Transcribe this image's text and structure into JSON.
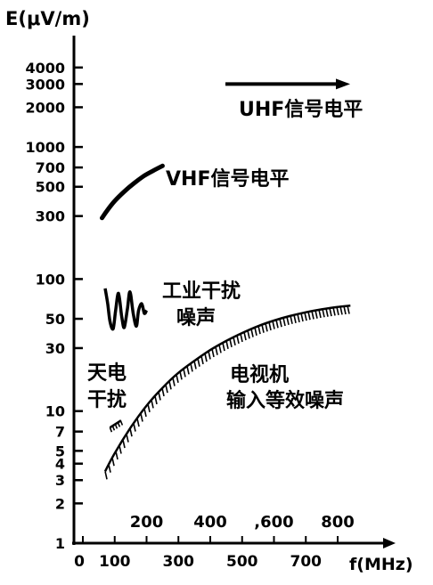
{
  "chart_data": {
    "type": "line",
    "y_scale": "log",
    "ylabel": "E(μV/m)",
    "xlabel": "f(MHz)",
    "ylim": [
      1,
      4000
    ],
    "xlim": [
      0,
      850
    ],
    "y_ticks": [
      {
        "value": 1,
        "label": "1"
      },
      {
        "value": 2,
        "label": "2"
      },
      {
        "value": 3,
        "label": "3"
      },
      {
        "value": 4,
        "label": "4"
      },
      {
        "value": 5,
        "label": "5"
      },
      {
        "value": 7,
        "label": "7"
      },
      {
        "value": 10,
        "label": "10"
      },
      {
        "value": 30,
        "label": "30"
      },
      {
        "value": 50,
        "label": "50"
      },
      {
        "value": 100,
        "label": "100"
      },
      {
        "value": 300,
        "label": "300"
      },
      {
        "value": 500,
        "label": "500"
      },
      {
        "value": 700,
        "label": "700"
      },
      {
        "value": 1000,
        "label": "1000"
      },
      {
        "value": 2000,
        "label": "2000"
      },
      {
        "value": 3000,
        "label": "3000"
      },
      {
        "value": 4000,
        "label": "4000"
      }
    ],
    "x_ticks_lower": [
      {
        "value": 0,
        "label": "0"
      },
      {
        "value": 100,
        "label": "100"
      },
      {
        "value": 300,
        "label": "300"
      },
      {
        "value": 500,
        "label": "500"
      },
      {
        "value": 700,
        "label": "700"
      }
    ],
    "x_ticks_upper": [
      {
        "value": 200,
        "label": "200"
      },
      {
        "value": 400,
        "label": "400"
      },
      {
        "value": 600,
        "label": ",600"
      },
      {
        "value": 800,
        "label": "800"
      }
    ],
    "series": [
      {
        "name": "UHF信号电平",
        "style": "arrow",
        "x": [
          470,
          800
        ],
        "y": [
          3000,
          3000
        ]
      },
      {
        "name": "VHF信号电平",
        "style": "solid",
        "x": [
          60,
          80,
          100,
          130,
          160,
          190,
          220,
          250
        ],
        "y": [
          290,
          340,
          390,
          460,
          530,
          600,
          660,
          720
        ]
      },
      {
        "name": "工业干扰噪声",
        "style": "wavy",
        "x": [
          70,
          78,
          85,
          95,
          103,
          112,
          122,
          130,
          140,
          148,
          158,
          168,
          175,
          185,
          193,
          200
        ],
        "y": [
          85,
          65,
          48,
          42,
          58,
          78,
          52,
          43,
          60,
          80,
          55,
          44,
          58,
          65,
          55,
          58
        ]
      },
      {
        "name": "天电干扰",
        "style": "hatched",
        "x": [
          85,
          120
        ],
        "y": [
          7.5,
          8.5
        ]
      },
      {
        "name": "电视机输入等效噪声",
        "style": "hatched",
        "x": [
          70,
          100,
          150,
          200,
          250,
          300,
          350,
          400,
          450,
          500,
          550,
          600,
          650,
          700,
          750,
          800,
          840
        ],
        "y": [
          3.5,
          4.8,
          7.5,
          11,
          15,
          19.5,
          24,
          29,
          34,
          39,
          44,
          48.5,
          52.5,
          56,
          59,
          61.5,
          63
        ]
      }
    ]
  }
}
